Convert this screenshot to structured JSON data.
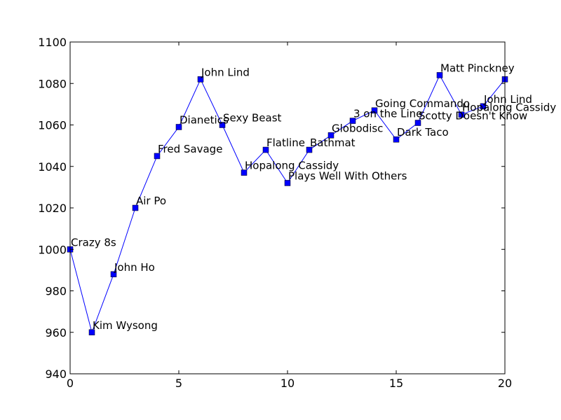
{
  "chart_data": {
    "type": "line",
    "title": "",
    "xlabel": "",
    "ylabel": "",
    "xlim": [
      0,
      20
    ],
    "ylim": [
      940,
      1100
    ],
    "xticks": [
      0,
      5,
      10,
      15,
      20
    ],
    "yticks": [
      940,
      960,
      980,
      1000,
      1020,
      1040,
      1060,
      1080,
      1100
    ],
    "grid": false,
    "line_color": "#0000ff",
    "marker_color": "#0000ff",
    "marker": "square",
    "points": [
      {
        "x": 0,
        "y": 1000,
        "label": "Crazy 8s"
      },
      {
        "x": 1,
        "y": 960,
        "label": "Kim Wysong"
      },
      {
        "x": 2,
        "y": 988,
        "label": "John Ho"
      },
      {
        "x": 3,
        "y": 1020,
        "label": "Air Po"
      },
      {
        "x": 4,
        "y": 1045,
        "label": "Fred Savage"
      },
      {
        "x": 5,
        "y": 1059,
        "label": "Dianetics"
      },
      {
        "x": 6,
        "y": 1082,
        "label": "John Lind"
      },
      {
        "x": 7,
        "y": 1060,
        "label": "Sexy Beast"
      },
      {
        "x": 8,
        "y": 1037,
        "label": "Hopalong Cassidy"
      },
      {
        "x": 9,
        "y": 1048,
        "label": "Flatline"
      },
      {
        "x": 10,
        "y": 1032,
        "label": "Plays Well With Others"
      },
      {
        "x": 11,
        "y": 1048,
        "label": "Bathmat"
      },
      {
        "x": 12,
        "y": 1055,
        "label": "Globodisc"
      },
      {
        "x": 13,
        "y": 1062,
        "label": "3 on the Line"
      },
      {
        "x": 14,
        "y": 1067,
        "label": "Going Commando"
      },
      {
        "x": 15,
        "y": 1053,
        "label": "Dark Taco"
      },
      {
        "x": 16,
        "y": 1061,
        "label": "Scotty Doesn't Know"
      },
      {
        "x": 17,
        "y": 1084,
        "label": "Matt Pinckney"
      },
      {
        "x": 18,
        "y": 1065,
        "label": "Hopalong Cassidy"
      },
      {
        "x": 19,
        "y": 1069,
        "label": "John Lind"
      },
      {
        "x": 20,
        "y": 1082,
        "label": ""
      }
    ]
  }
}
